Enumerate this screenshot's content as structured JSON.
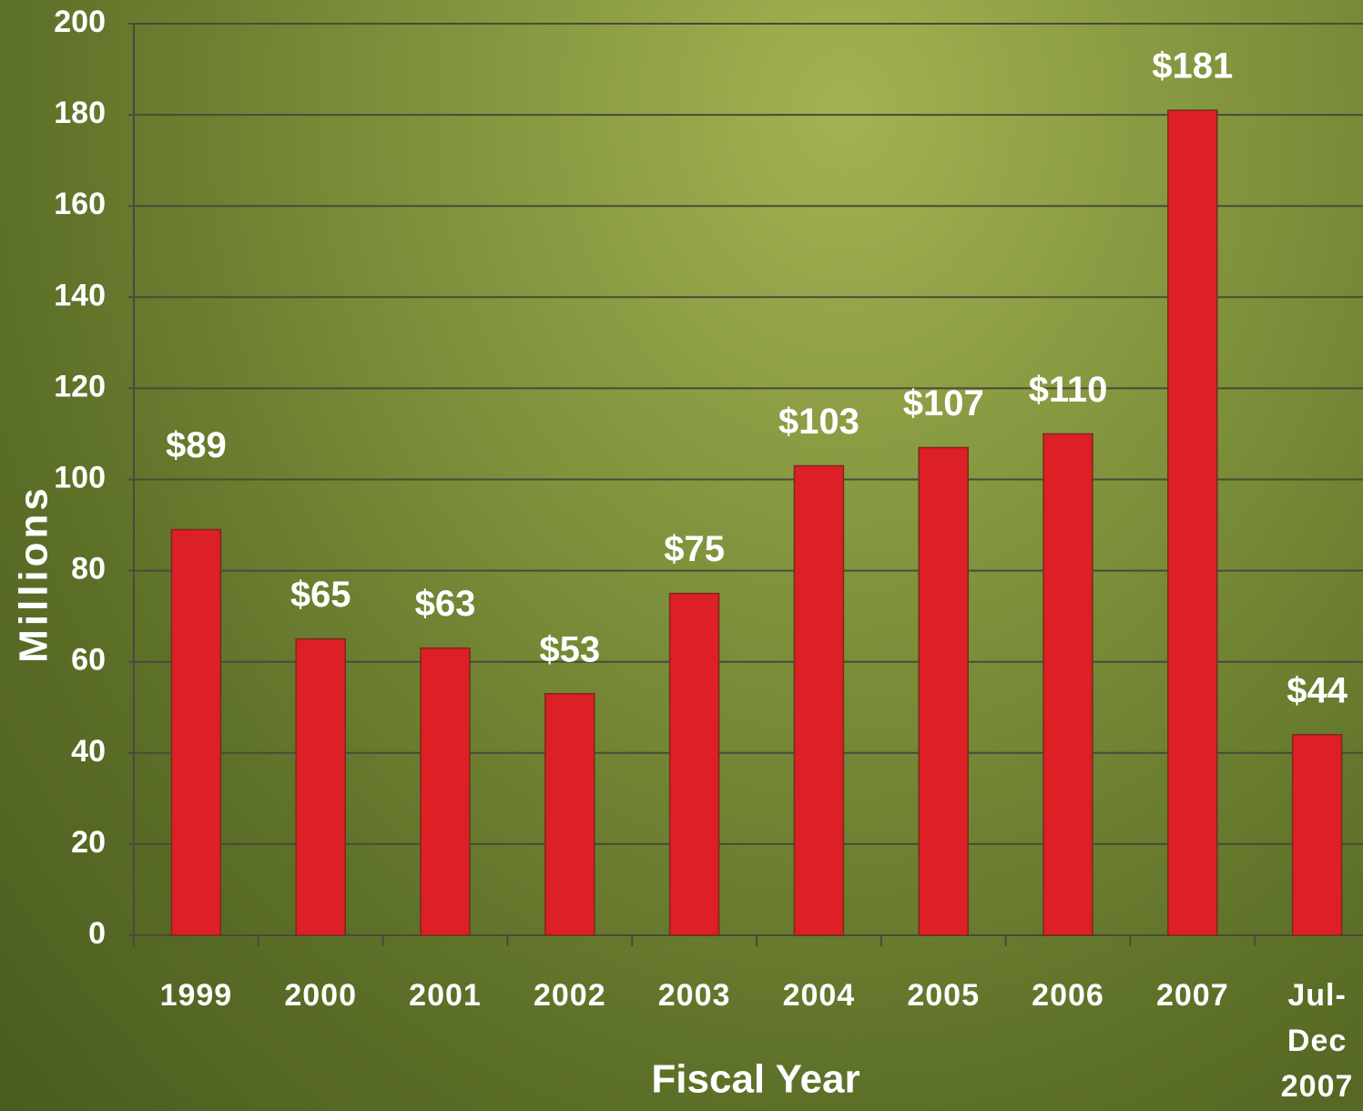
{
  "chart_data": {
    "type": "bar",
    "x_label": "Fiscal Year",
    "y_label": "Millions",
    "categories": [
      "1999",
      "2000",
      "2001",
      "2002",
      "2003",
      "2004",
      "2005",
      "2006",
      "2007",
      "Jul-Dec 2007"
    ],
    "values": [
      89,
      65,
      63,
      53,
      75,
      103,
      107,
      110,
      181,
      44
    ],
    "value_labels": [
      "$89",
      "$65",
      "$63",
      "$53",
      "$75",
      "$103",
      "$107",
      "$110",
      "$181",
      "$44"
    ],
    "color": "#dc2026",
    "ylim": [
      0,
      200
    ],
    "yticks": [
      0,
      20,
      40,
      60,
      80,
      100,
      120,
      140,
      160,
      180,
      200
    ],
    "grid": true
  }
}
